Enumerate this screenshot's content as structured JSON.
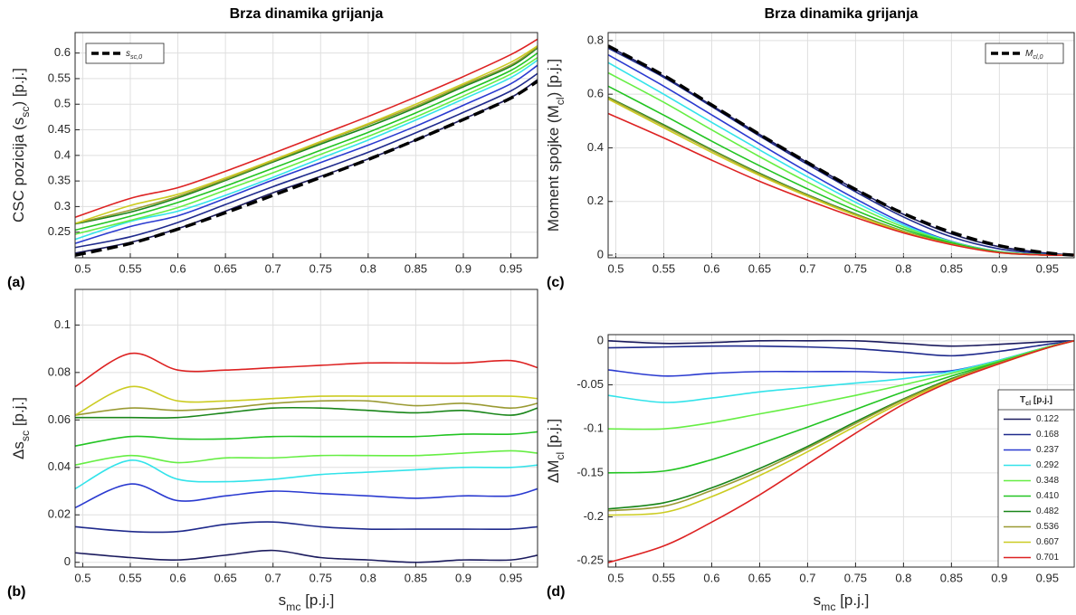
{
  "chart_data": [
    {
      "type": "line",
      "title": "Brza dinamika grijanja",
      "panel_label": "(a)",
      "ylabel": [
        "CSC pozicija (s",
        "sc",
        ") [p.j.]"
      ],
      "x": [
        0.492,
        0.55,
        0.6,
        0.65,
        0.7,
        0.75,
        0.8,
        0.85,
        0.9,
        0.95,
        0.978
      ],
      "xlim": [
        0.492,
        0.978
      ],
      "xticks": [
        0.5,
        0.55,
        0.6,
        0.65,
        0.7,
        0.75,
        0.8,
        0.85,
        0.9,
        0.95
      ],
      "ylim": [
        0.2,
        0.64
      ],
      "yticks": [
        0.25,
        0.3,
        0.35,
        0.4,
        0.45,
        0.5,
        0.55,
        0.6
      ],
      "grid": true,
      "legend": "upper left",
      "series": [
        {
          "color": "#1b1b5e",
          "values": [
            0.209,
            0.23,
            0.257,
            0.291,
            0.327,
            0.359,
            0.393,
            0.43,
            0.471,
            0.513,
            0.548
          ]
        },
        {
          "color": "#1f2a8c",
          "values": [
            0.22,
            0.241,
            0.269,
            0.304,
            0.339,
            0.372,
            0.406,
            0.444,
            0.484,
            0.526,
            0.56
          ]
        },
        {
          "color": "#2a3ad0",
          "values": [
            0.228,
            0.261,
            0.282,
            0.316,
            0.352,
            0.386,
            0.42,
            0.457,
            0.498,
            0.54,
            0.576
          ]
        },
        {
          "color": "#33e3ea",
          "values": [
            0.236,
            0.271,
            0.291,
            0.322,
            0.357,
            0.394,
            0.43,
            0.469,
            0.51,
            0.552,
            0.586
          ]
        },
        {
          "color": "#66ee44",
          "values": [
            0.246,
            0.273,
            0.298,
            0.332,
            0.366,
            0.402,
            0.437,
            0.475,
            0.516,
            0.559,
            0.591
          ]
        },
        {
          "color": "#22c422",
          "values": [
            0.254,
            0.281,
            0.308,
            0.34,
            0.375,
            0.41,
            0.445,
            0.483,
            0.524,
            0.566,
            0.6
          ]
        },
        {
          "color": "#1a861a",
          "values": [
            0.266,
            0.289,
            0.317,
            0.351,
            0.387,
            0.422,
            0.456,
            0.493,
            0.534,
            0.574,
            0.61
          ]
        },
        {
          "color": "#9a9a33",
          "values": [
            0.267,
            0.293,
            0.32,
            0.353,
            0.389,
            0.425,
            0.46,
            0.496,
            0.537,
            0.577,
            0.612
          ]
        },
        {
          "color": "#cccc22",
          "values": [
            0.267,
            0.302,
            0.324,
            0.356,
            0.391,
            0.427,
            0.462,
            0.5,
            0.54,
            0.582,
            0.614
          ]
        },
        {
          "color": "#dd2222",
          "values": [
            0.279,
            0.316,
            0.337,
            0.369,
            0.404,
            0.44,
            0.476,
            0.514,
            0.554,
            0.597,
            0.627
          ]
        },
        {
          "name": [
            "s",
            "sc,0"
          ],
          "color": "#000000",
          "dashed": true,
          "values": [
            0.205,
            0.228,
            0.256,
            0.288,
            0.322,
            0.357,
            0.392,
            0.43,
            0.47,
            0.512,
            0.545
          ]
        }
      ]
    },
    {
      "type": "line",
      "panel_label": "(b)",
      "ylabel": [
        "Δs",
        "sc",
        " [p.j.]"
      ],
      "xlabel": [
        "s",
        "mc",
        " [p.j.]"
      ],
      "x": [
        0.492,
        0.55,
        0.6,
        0.65,
        0.7,
        0.75,
        0.8,
        0.85,
        0.9,
        0.95,
        0.978
      ],
      "xlim": [
        0.492,
        0.978
      ],
      "xticks": [
        0.5,
        0.55,
        0.6,
        0.65,
        0.7,
        0.75,
        0.8,
        0.85,
        0.9,
        0.95
      ],
      "ylim": [
        -0.002,
        0.115
      ],
      "yticks": [
        0,
        0.02,
        0.04,
        0.06,
        0.08,
        0.1
      ],
      "grid": true,
      "series": [
        {
          "color": "#1b1b5e",
          "values": [
            0.004,
            0.002,
            0.001,
            0.003,
            0.005,
            0.002,
            0.001,
            0,
            0.001,
            0.001,
            0.003
          ]
        },
        {
          "color": "#1f2a8c",
          "values": [
            0.015,
            0.013,
            0.013,
            0.016,
            0.017,
            0.015,
            0.014,
            0.014,
            0.014,
            0.014,
            0.015
          ]
        },
        {
          "color": "#2a3ad0",
          "values": [
            0.023,
            0.033,
            0.026,
            0.028,
            0.03,
            0.029,
            0.028,
            0.027,
            0.028,
            0.028,
            0.031
          ]
        },
        {
          "color": "#33e3ea",
          "values": [
            0.031,
            0.043,
            0.035,
            0.034,
            0.035,
            0.037,
            0.038,
            0.039,
            0.04,
            0.04,
            0.041
          ]
        },
        {
          "color": "#66ee44",
          "values": [
            0.041,
            0.045,
            0.042,
            0.044,
            0.044,
            0.045,
            0.045,
            0.045,
            0.046,
            0.047,
            0.046
          ]
        },
        {
          "color": "#22c422",
          "values": [
            0.049,
            0.053,
            0.052,
            0.052,
            0.053,
            0.053,
            0.053,
            0.053,
            0.054,
            0.054,
            0.055
          ]
        },
        {
          "color": "#1a861a",
          "values": [
            0.061,
            0.061,
            0.061,
            0.063,
            0.065,
            0.065,
            0.064,
            0.063,
            0.064,
            0.062,
            0.065
          ]
        },
        {
          "color": "#9a9a33",
          "values": [
            0.062,
            0.065,
            0.064,
            0.065,
            0.067,
            0.068,
            0.068,
            0.066,
            0.067,
            0.065,
            0.067
          ]
        },
        {
          "color": "#cccc22",
          "values": [
            0.062,
            0.074,
            0.068,
            0.068,
            0.069,
            0.07,
            0.07,
            0.07,
            0.07,
            0.07,
            0.069
          ]
        },
        {
          "color": "#dd2222",
          "values": [
            0.074,
            0.088,
            0.081,
            0.081,
            0.082,
            0.083,
            0.084,
            0.084,
            0.084,
            0.085,
            0.082
          ]
        }
      ]
    },
    {
      "type": "line",
      "title": "Brza dinamika grijanja",
      "panel_label": "(c)",
      "ylabel": [
        "Moment spojke (M",
        "cl",
        ") [p.j.]"
      ],
      "x": [
        0.492,
        0.55,
        0.6,
        0.65,
        0.7,
        0.75,
        0.8,
        0.85,
        0.9,
        0.95,
        0.978
      ],
      "xlim": [
        0.492,
        0.978
      ],
      "xticks": [
        0.5,
        0.55,
        0.6,
        0.65,
        0.7,
        0.75,
        0.8,
        0.85,
        0.9,
        0.95
      ],
      "ylim": [
        -0.01,
        0.83
      ],
      "yticks": [
        0,
        0.2,
        0.4,
        0.6,
        0.8
      ],
      "grid": true,
      "legend": "upper right",
      "series": [
        {
          "color": "#1b1b5e",
          "values": [
            0.78,
            0.667,
            0.558,
            0.45,
            0.345,
            0.245,
            0.152,
            0.079,
            0.031,
            0.007,
            0
          ]
        },
        {
          "color": "#1f2a8c",
          "values": [
            0.772,
            0.663,
            0.554,
            0.444,
            0.338,
            0.236,
            0.142,
            0.068,
            0.023,
            0.004,
            0
          ]
        },
        {
          "color": "#2a3ad0",
          "values": [
            0.747,
            0.63,
            0.523,
            0.415,
            0.31,
            0.21,
            0.119,
            0.051,
            0.013,
            0.001,
            0
          ]
        },
        {
          "color": "#33e3ea",
          "values": [
            0.718,
            0.6,
            0.495,
            0.392,
            0.292,
            0.197,
            0.112,
            0.05,
            0.013,
            0.001,
            0
          ]
        },
        {
          "color": "#66ee44",
          "values": [
            0.68,
            0.57,
            0.467,
            0.367,
            0.272,
            0.183,
            0.105,
            0.048,
            0.012,
            0.001,
            0
          ]
        },
        {
          "color": "#22c422",
          "values": [
            0.63,
            0.522,
            0.425,
            0.333,
            0.247,
            0.167,
            0.097,
            0.045,
            0.011,
            0,
            0
          ]
        },
        {
          "color": "#1a861a",
          "values": [
            0.589,
            0.486,
            0.393,
            0.305,
            0.225,
            0.153,
            0.089,
            0.042,
            0.01,
            0,
            0
          ]
        },
        {
          "color": "#9a9a33",
          "values": [
            0.587,
            0.482,
            0.39,
            0.302,
            0.223,
            0.151,
            0.088,
            0.041,
            0.01,
            0,
            0
          ]
        },
        {
          "color": "#cccc22",
          "values": [
            0.582,
            0.475,
            0.383,
            0.297,
            0.219,
            0.148,
            0.086,
            0.04,
            0.009,
            0,
            0
          ]
        },
        {
          "color": "#dd2222",
          "values": [
            0.528,
            0.437,
            0.354,
            0.275,
            0.205,
            0.14,
            0.083,
            0.039,
            0.009,
            0,
            0
          ]
        },
        {
          "name": [
            "M",
            "cl,0"
          ],
          "color": "#000000",
          "dashed": true,
          "values": [
            0.78,
            0.67,
            0.56,
            0.45,
            0.345,
            0.245,
            0.155,
            0.085,
            0.035,
            0.008,
            0
          ]
        }
      ]
    },
    {
      "type": "line",
      "panel_label": "(d)",
      "ylabel": [
        "ΔM",
        "cl",
        " [p.j.]"
      ],
      "xlabel": [
        "s",
        "mc",
        " [p.j.]"
      ],
      "x": [
        0.492,
        0.55,
        0.6,
        0.65,
        0.7,
        0.75,
        0.8,
        0.85,
        0.9,
        0.95,
        0.978
      ],
      "xlim": [
        0.492,
        0.978
      ],
      "xticks": [
        0.5,
        0.55,
        0.6,
        0.65,
        0.7,
        0.75,
        0.8,
        0.85,
        0.9,
        0.95
      ],
      "ylim": [
        -0.257,
        0.007
      ],
      "yticks": [
        -0.25,
        -0.2,
        -0.15,
        -0.1,
        -0.05,
        0
      ],
      "grid": true,
      "legend": "lower right",
      "legend_title": [
        "T",
        "cl",
        " [p.j.]"
      ],
      "series": [
        {
          "name": "0.122",
          "color": "#1b1b5e",
          "values": [
            0,
            -0.003,
            -0.002,
            0,
            0,
            0,
            -0.003,
            -0.006,
            -0.004,
            -0.001,
            0
          ]
        },
        {
          "name": "0.168",
          "color": "#1f2a8c",
          "values": [
            -0.008,
            -0.007,
            -0.006,
            -0.006,
            -0.007,
            -0.009,
            -0.013,
            -0.017,
            -0.012,
            -0.004,
            0
          ]
        },
        {
          "name": "0.237",
          "color": "#2a3ad0",
          "values": [
            -0.033,
            -0.04,
            -0.037,
            -0.035,
            -0.035,
            -0.035,
            -0.036,
            -0.034,
            -0.022,
            -0.007,
            0
          ]
        },
        {
          "name": "0.292",
          "color": "#33e3ea",
          "values": [
            -0.062,
            -0.07,
            -0.065,
            -0.058,
            -0.053,
            -0.048,
            -0.043,
            -0.035,
            -0.022,
            -0.007,
            0
          ]
        },
        {
          "name": "0.348",
          "color": "#66ee44",
          "values": [
            -0.1,
            -0.1,
            -0.093,
            -0.083,
            -0.073,
            -0.062,
            -0.05,
            -0.037,
            -0.023,
            -0.007,
            0
          ]
        },
        {
          "name": "0.410",
          "color": "#22c422",
          "values": [
            -0.15,
            -0.148,
            -0.135,
            -0.117,
            -0.098,
            -0.078,
            -0.058,
            -0.04,
            -0.024,
            -0.008,
            0
          ]
        },
        {
          "name": "0.482",
          "color": "#1a861a",
          "values": [
            -0.191,
            -0.184,
            -0.167,
            -0.145,
            -0.12,
            -0.092,
            -0.066,
            -0.043,
            -0.025,
            -0.008,
            0
          ]
        },
        {
          "name": "0.536",
          "color": "#9a9a33",
          "values": [
            -0.193,
            -0.188,
            -0.17,
            -0.148,
            -0.122,
            -0.094,
            -0.067,
            -0.044,
            -0.025,
            -0.008,
            0
          ]
        },
        {
          "name": "0.607",
          "color": "#cccc22",
          "values": [
            -0.198,
            -0.195,
            -0.177,
            -0.153,
            -0.126,
            -0.097,
            -0.069,
            -0.045,
            -0.026,
            -0.008,
            0
          ]
        },
        {
          "name": "0.701",
          "color": "#dd2222",
          "values": [
            -0.252,
            -0.233,
            -0.206,
            -0.175,
            -0.14,
            -0.105,
            -0.072,
            -0.046,
            -0.026,
            -0.008,
            0
          ]
        }
      ]
    }
  ]
}
